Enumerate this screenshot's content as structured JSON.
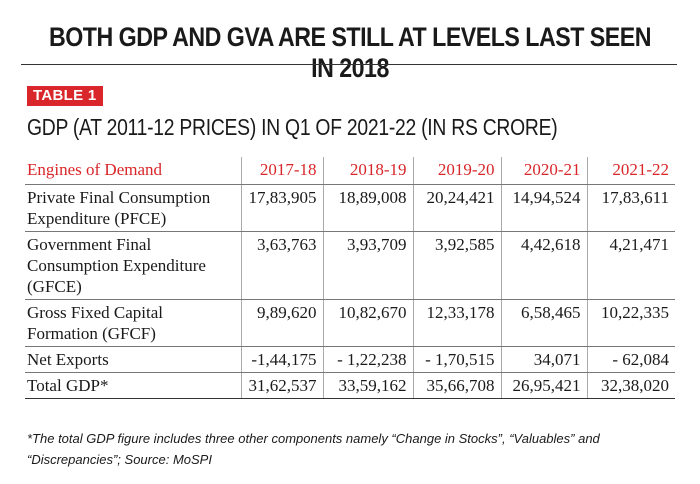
{
  "headline": "BOTH GDP AND GVA ARE STILL AT LEVELS LAST SEEN IN 2018",
  "badge": "TABLE 1",
  "subtitle": "GDP (AT 2011-12 PRICES) IN Q1 OF 2021-22 (IN RS CRORE)",
  "colors": {
    "accent_red": "#d9262a",
    "text": "#1a1a1a"
  },
  "table": {
    "headers": [
      "Engines of Demand",
      "2017-18",
      "2018-19",
      "2019-20",
      "2020-21",
      "2021-22"
    ],
    "rows": [
      {
        "label": "Private Final Consumption Expenditure (PFCE)",
        "values": [
          "17,83,905",
          "18,89,008",
          "20,24,421",
          "14,94,524",
          "17,83,611"
        ]
      },
      {
        "label": "Government Final Consumption Expenditure (GFCE)",
        "values": [
          "3,63,763",
          "3,93,709",
          "3,92,585",
          "4,42,618",
          "4,21,471"
        ]
      },
      {
        "label": "Gross Fixed Capital Formation (GFCF)",
        "values": [
          "9,89,620",
          "10,82,670",
          "12,33,178",
          "6,58,465",
          "10,22,335"
        ]
      },
      {
        "label": "Net Exports",
        "values": [
          "-1,44,175",
          "- 1,22,238",
          "- 1,70,515",
          "34,071",
          "- 62,084"
        ]
      },
      {
        "label": "Total GDP*",
        "values": [
          "31,62,537",
          "33,59,162",
          "35,66,708",
          "26,95,421",
          "32,38,020"
        ]
      }
    ]
  },
  "footnote": "*The total GDP figure includes three other components namely “Change in Stocks”, “Valuables” and “Discrepancies”; Source: MoSPI"
}
